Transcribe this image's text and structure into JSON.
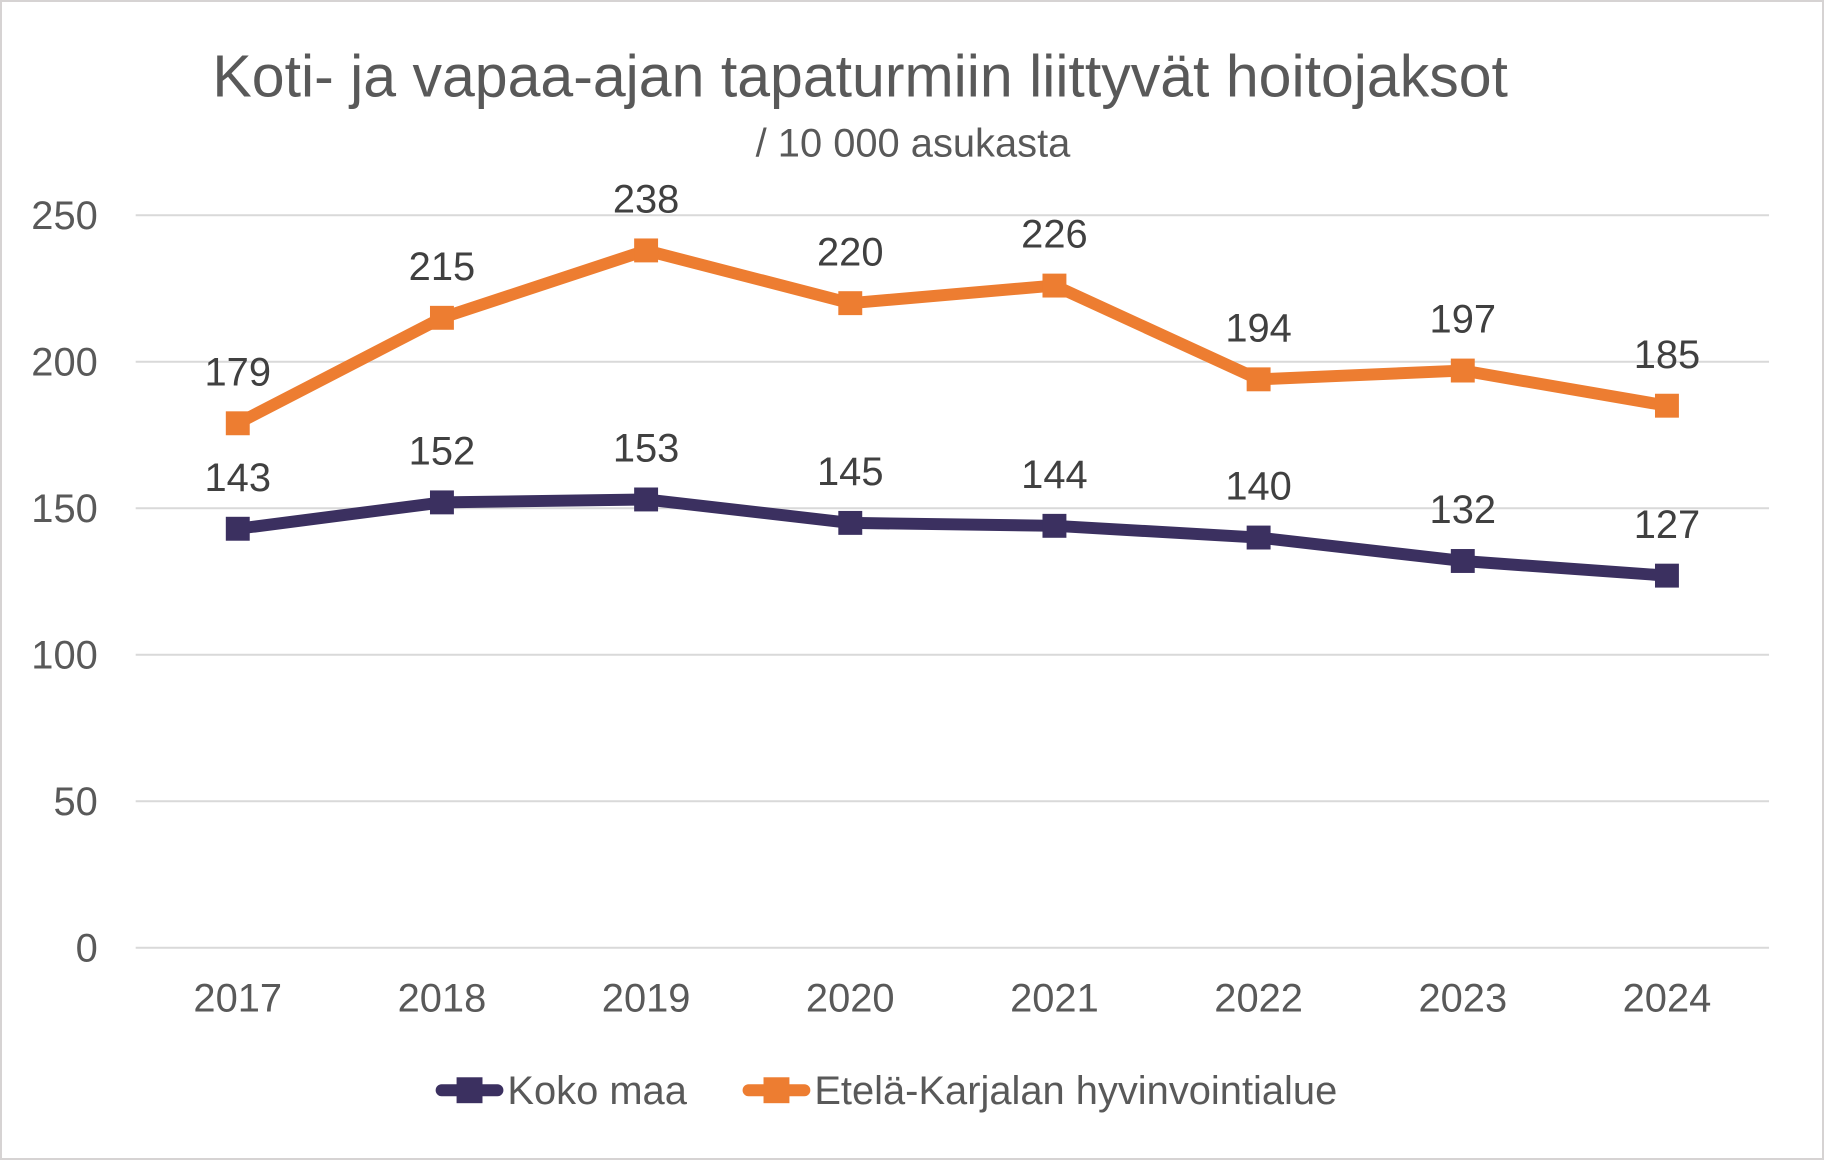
{
  "chart_data": {
    "type": "line",
    "title": "Koti- ja vapaa-ajan tapaturmiin liittyvät hoitojaksot",
    "subtitle": "/ 10 000 asukasta",
    "categories": [
      "2017",
      "2018",
      "2019",
      "2020",
      "2021",
      "2022",
      "2023",
      "2024"
    ],
    "series": [
      {
        "name": "Koko maa",
        "color": "#3B3060",
        "marker": "square",
        "values": [
          143,
          152,
          153,
          145,
          144,
          140,
          132,
          127
        ]
      },
      {
        "name": "Etelä-Karjalan hyvinvointialue",
        "color": "#ED7D31",
        "marker": "square",
        "values": [
          179,
          215,
          238,
          220,
          226,
          194,
          197,
          185
        ]
      }
    ],
    "y_axis": {
      "min": 0,
      "max": 250,
      "tick_step": 50,
      "tick_labels": [
        "0",
        "50",
        "100",
        "150",
        "200",
        "250"
      ]
    },
    "x_axis": {
      "tick_labels": [
        "2017",
        "2018",
        "2019",
        "2020",
        "2021",
        "2022",
        "2023",
        "2024"
      ]
    },
    "legend": {
      "position": "bottom",
      "items": [
        "Koko maa",
        "Etelä-Karjalan hyvinvointialue"
      ]
    },
    "grid": true,
    "data_labels": true,
    "colors": {
      "gridline": "#D9D9D9",
      "axis_text": "#595959",
      "title_text": "#595959",
      "data_label_text": "#404040",
      "series_koko_maa": "#3B3060",
      "series_etela_karjala": "#ED7D31",
      "background": "#FFFFFF",
      "frame_border": "#D6D3D3"
    }
  }
}
